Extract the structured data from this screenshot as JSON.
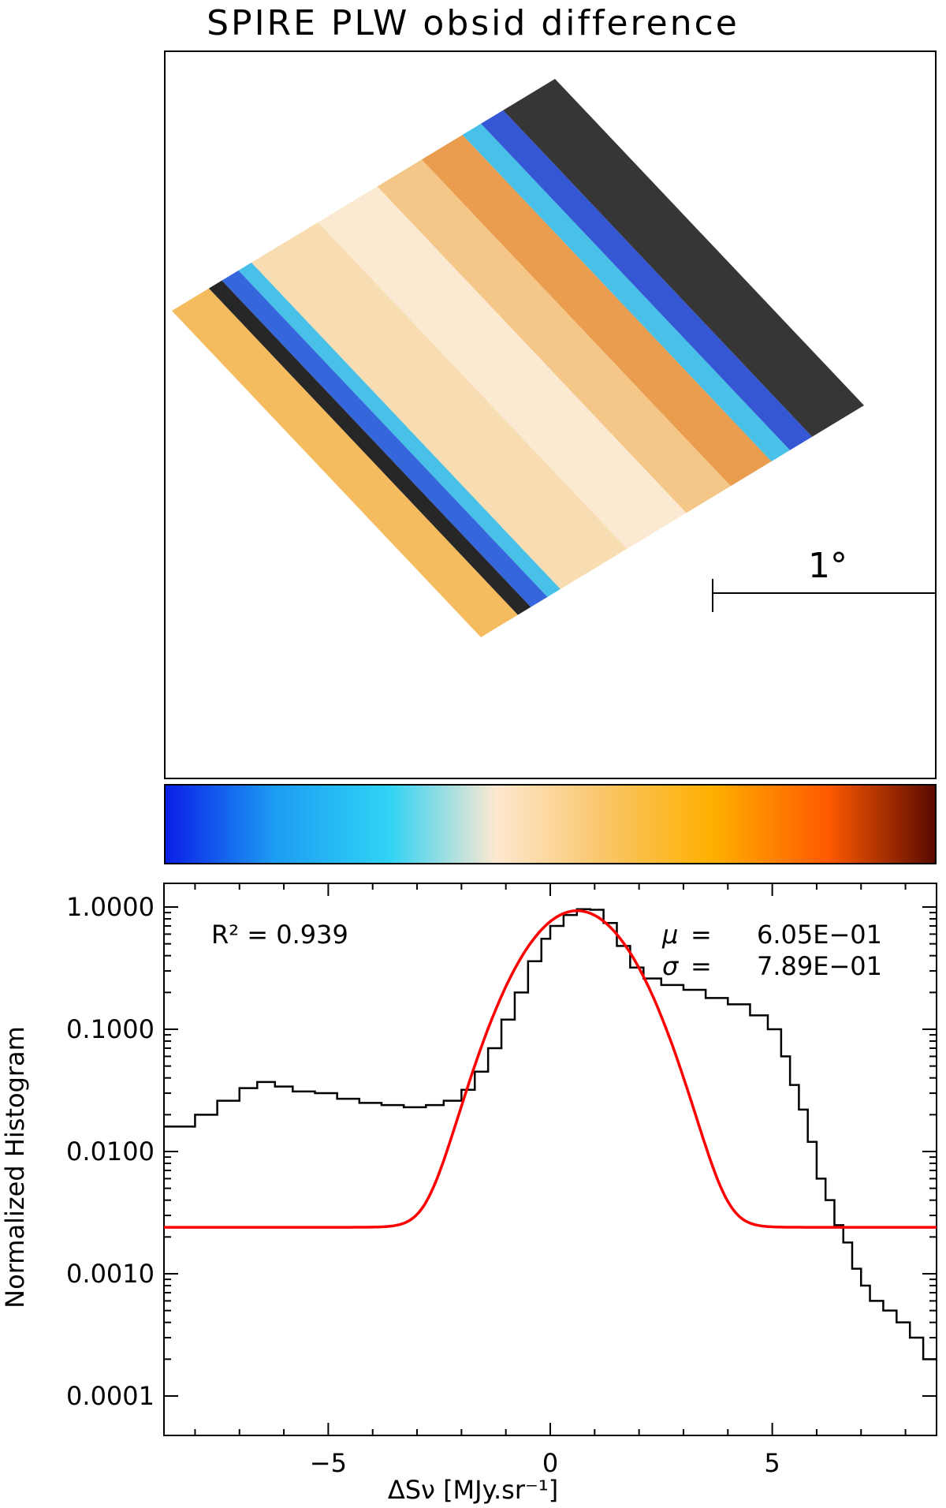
{
  "title": "SPIRE PLW obsid difference",
  "map": {
    "scalebar_label": "1°",
    "band_colors": [
      "#f4b54e",
      "#101010",
      "#1f55d8",
      "#34b9e6",
      "#f6d9a8",
      "#fbe8cc",
      "#f3c07a",
      "#e8923c",
      "#34b9e6",
      "#1f45cf",
      "#202020"
    ]
  },
  "colorbar": {
    "colors": [
      "#0b1fe6",
      "#1c9bf2",
      "#2fd3f5",
      "#ffe8d0",
      "#f9c668",
      "#ffb000",
      "#ff5a00",
      "#5a0a00"
    ]
  },
  "chart_data": {
    "type": "line",
    "title": "",
    "xlabel": "ΔSν [MJy.sr⁻¹]",
    "ylabel": "Normalized Histogram",
    "xlim": [
      -8.7,
      8.7
    ],
    "ylim": [
      0.0001,
      1.0
    ],
    "yscale": "log",
    "xticks": [
      -5,
      0,
      5
    ],
    "xtick_labels": [
      "−5",
      "0",
      "5"
    ],
    "yticks": [
      1.0,
      0.1,
      0.01,
      0.001,
      0.0001
    ],
    "ytick_labels": [
      "1.0000",
      "0.1000",
      "0.0100",
      "0.0010",
      "0.0001"
    ],
    "annotations": {
      "r2": "R² = 0.939",
      "mu_symbol": "μ",
      "mu_eq": "=",
      "mu_value": "6.05E−01",
      "sigma_symbol": "σ",
      "sigma_eq": "=",
      "sigma_value": "7.89E−01"
    },
    "series": [
      {
        "style": "histogram",
        "color": "#000000",
        "points": [
          [
            -8.7,
            0.016
          ],
          [
            -8.0,
            0.02
          ],
          [
            -7.5,
            0.026
          ],
          [
            -7.0,
            0.033
          ],
          [
            -6.6,
            0.037
          ],
          [
            -6.2,
            0.034
          ],
          [
            -5.8,
            0.031
          ],
          [
            -5.3,
            0.03
          ],
          [
            -4.8,
            0.027
          ],
          [
            -4.3,
            0.025
          ],
          [
            -3.8,
            0.024
          ],
          [
            -3.3,
            0.023
          ],
          [
            -2.8,
            0.024
          ],
          [
            -2.4,
            0.026
          ],
          [
            -2.0,
            0.032
          ],
          [
            -1.7,
            0.045
          ],
          [
            -1.4,
            0.07
          ],
          [
            -1.1,
            0.12
          ],
          [
            -0.8,
            0.2
          ],
          [
            -0.5,
            0.36
          ],
          [
            -0.2,
            0.55
          ],
          [
            0.0,
            0.7
          ],
          [
            0.3,
            0.86
          ],
          [
            0.6,
            0.96
          ],
          [
            0.9,
            0.95
          ],
          [
            1.2,
            0.74
          ],
          [
            1.5,
            0.48
          ],
          [
            1.8,
            0.32
          ],
          [
            2.1,
            0.26
          ],
          [
            2.5,
            0.23
          ],
          [
            3.0,
            0.21
          ],
          [
            3.5,
            0.18
          ],
          [
            4.0,
            0.16
          ],
          [
            4.5,
            0.13
          ],
          [
            4.9,
            0.1
          ],
          [
            5.2,
            0.06
          ],
          [
            5.4,
            0.035
          ],
          [
            5.6,
            0.022
          ],
          [
            5.8,
            0.012
          ],
          [
            6.0,
            0.006
          ],
          [
            6.2,
            0.004
          ],
          [
            6.4,
            0.0025
          ],
          [
            6.6,
            0.0018
          ],
          [
            6.8,
            0.0011
          ],
          [
            7.0,
            0.0008
          ],
          [
            7.2,
            0.0006
          ],
          [
            7.5,
            0.0005
          ],
          [
            7.8,
            0.0004
          ],
          [
            8.1,
            0.0003
          ],
          [
            8.4,
            0.0002
          ],
          [
            8.7,
            0.0002
          ]
        ]
      },
      {
        "style": "fit",
        "color": "#ff0000",
        "model": "gaussian",
        "mu": 0.605,
        "sigma": 0.789,
        "amplitude": 0.93,
        "baseline": 0.0024
      }
    ]
  }
}
